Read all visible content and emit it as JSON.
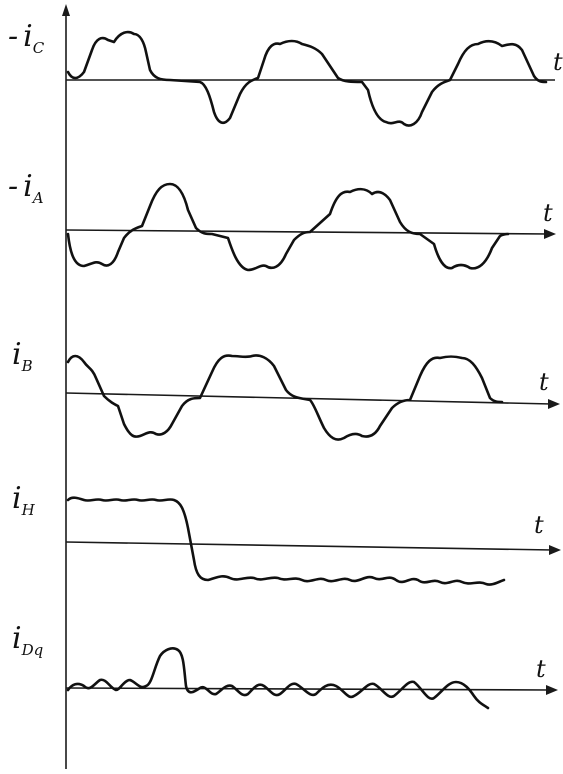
{
  "traces": [
    {
      "id": "ic",
      "sign": "-",
      "main": "i",
      "sub": "C",
      "t_label": "t",
      "shape": "phase-current"
    },
    {
      "id": "ia",
      "sign": "-",
      "main": "i",
      "sub": "A",
      "t_label": "t",
      "shape": "phase-current"
    },
    {
      "id": "ib",
      "sign": "",
      "main": "i",
      "sub": "B",
      "t_label": "t",
      "shape": "phase-current"
    },
    {
      "id": "ih",
      "sign": "",
      "main": "i",
      "sub": "H",
      "t_label": "t",
      "shape": "step-with-ripple"
    },
    {
      "id": "idq",
      "sign": "",
      "main": "i",
      "sub": "Dq",
      "t_label": "t",
      "shape": "ripple-with-pulse"
    }
  ]
}
